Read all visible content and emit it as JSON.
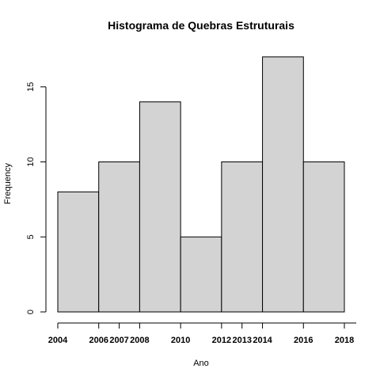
{
  "chart_data": {
    "type": "bar",
    "title": "Histograma de Quebras Estruturais",
    "xlabel": "Ano",
    "ylabel": "Frequency",
    "bins": [
      {
        "start": 2004,
        "end": 2006,
        "count": 8
      },
      {
        "start": 2006,
        "end": 2008,
        "count": 10
      },
      {
        "start": 2008,
        "end": 2010,
        "count": 14
      },
      {
        "start": 2010,
        "end": 2012,
        "count": 5
      },
      {
        "start": 2012,
        "end": 2014,
        "count": 10
      },
      {
        "start": 2014,
        "end": 2016,
        "count": 17
      },
      {
        "start": 2016,
        "end": 2018,
        "count": 10
      }
    ],
    "x_ticks": [
      2004,
      2006,
      2007,
      2008,
      2010,
      2012,
      2013,
      2014,
      2016,
      2018
    ],
    "y_ticks": [
      0,
      5,
      10,
      15
    ],
    "xlim": [
      2004,
      2018
    ],
    "ylim": [
      0,
      17
    ],
    "grid": false,
    "legend": "none",
    "bar_color": "#d3d3d3",
    "edge_color": "#000000"
  }
}
